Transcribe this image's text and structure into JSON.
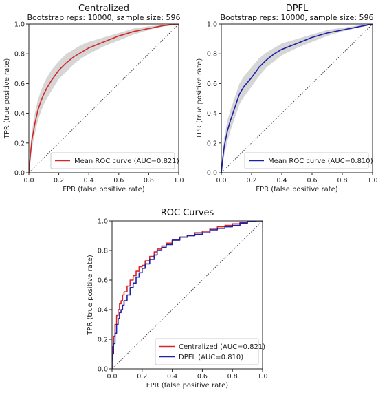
{
  "chart_data": [
    {
      "type": "line",
      "title": "Centralized",
      "subtitle": "Bootstrap reps: 10000, sample size: 596",
      "xlabel": "FPR (false positive rate)",
      "ylabel": "TPR (true positive rate)",
      "xlim": [
        0,
        1
      ],
      "ylim": [
        0,
        1
      ],
      "xticks": [
        "0.0",
        "0.2",
        "0.4",
        "0.6",
        "0.8",
        "1.0"
      ],
      "yticks": [
        "0.0",
        "0.2",
        "0.4",
        "0.6",
        "0.8",
        "1.0"
      ],
      "grid": false,
      "legend": "lower-right",
      "diagonal": true,
      "band_color": "#c8c8c8",
      "series": [
        {
          "name": "Mean ROC curve (AUC=0.821)",
          "color": "#d62728",
          "x": [
            0,
            0.01,
            0.02,
            0.04,
            0.06,
            0.08,
            0.1,
            0.12,
            0.15,
            0.2,
            0.25,
            0.3,
            0.35,
            0.4,
            0.5,
            0.6,
            0.7,
            0.8,
            0.9,
            1.0
          ],
          "y": [
            0,
            0.12,
            0.22,
            0.33,
            0.42,
            0.48,
            0.53,
            0.57,
            0.62,
            0.69,
            0.74,
            0.78,
            0.81,
            0.84,
            0.88,
            0.92,
            0.95,
            0.97,
            0.99,
            1.0
          ],
          "band_low": [
            0,
            0.07,
            0.16,
            0.26,
            0.35,
            0.41,
            0.46,
            0.5,
            0.55,
            0.63,
            0.68,
            0.73,
            0.77,
            0.8,
            0.85,
            0.89,
            0.93,
            0.96,
            0.985,
            1.0
          ],
          "band_high": [
            0,
            0.17,
            0.28,
            0.4,
            0.49,
            0.55,
            0.6,
            0.64,
            0.69,
            0.75,
            0.8,
            0.83,
            0.86,
            0.88,
            0.91,
            0.94,
            0.97,
            0.985,
            0.995,
            1.0
          ]
        }
      ]
    },
    {
      "type": "line",
      "title": "DPFL",
      "subtitle": "Bootstrap reps: 10000, sample size: 596",
      "xlabel": "FPR (false positive rate)",
      "ylabel": "TPR (true positive rate)",
      "xlim": [
        0,
        1
      ],
      "ylim": [
        0,
        1
      ],
      "xticks": [
        "0.0",
        "0.2",
        "0.4",
        "0.6",
        "0.8",
        "1.0"
      ],
      "yticks": [
        "0.0",
        "0.2",
        "0.4",
        "0.6",
        "0.8",
        "1.0"
      ],
      "grid": false,
      "legend": "lower-right",
      "diagonal": true,
      "band_color": "#c8c8c8",
      "series": [
        {
          "name": "Mean ROC curve (AUC=0.810)",
          "color": "#1f1fa8",
          "x": [
            0,
            0.01,
            0.02,
            0.04,
            0.06,
            0.08,
            0.1,
            0.12,
            0.15,
            0.2,
            0.25,
            0.3,
            0.35,
            0.4,
            0.5,
            0.6,
            0.7,
            0.8,
            0.9,
            1.0
          ],
          "y": [
            0,
            0.1,
            0.18,
            0.28,
            0.35,
            0.41,
            0.47,
            0.53,
            0.58,
            0.64,
            0.71,
            0.76,
            0.8,
            0.83,
            0.87,
            0.91,
            0.94,
            0.96,
            0.98,
            1.0
          ],
          "band_low": [
            0,
            0.06,
            0.12,
            0.21,
            0.28,
            0.34,
            0.4,
            0.46,
            0.51,
            0.58,
            0.65,
            0.71,
            0.75,
            0.79,
            0.84,
            0.88,
            0.92,
            0.95,
            0.975,
            1.0
          ],
          "band_high": [
            0,
            0.15,
            0.24,
            0.35,
            0.42,
            0.48,
            0.54,
            0.6,
            0.65,
            0.71,
            0.77,
            0.81,
            0.84,
            0.87,
            0.9,
            0.93,
            0.96,
            0.975,
            0.99,
            1.0
          ]
        }
      ]
    },
    {
      "type": "line",
      "title": "ROC Curves",
      "xlabel": "FPR (false positive rate)",
      "ylabel": "TPR (true positive rate)",
      "xlim": [
        0,
        1
      ],
      "ylim": [
        0,
        1
      ],
      "xticks": [
        "0.0",
        "0.2",
        "0.4",
        "0.6",
        "0.8",
        "1.0"
      ],
      "yticks": [
        "0.0",
        "0.2",
        "0.4",
        "0.6",
        "0.8",
        "1.0"
      ],
      "grid": false,
      "legend": "lower-right",
      "diagonal": true,
      "series": [
        {
          "name": "Centralized (AUC=0.821)",
          "color": "#d62728",
          "x": [
            0,
            0.005,
            0.01,
            0.02,
            0.03,
            0.04,
            0.05,
            0.06,
            0.07,
            0.08,
            0.1,
            0.12,
            0.14,
            0.16,
            0.18,
            0.2,
            0.22,
            0.25,
            0.28,
            0.3,
            0.33,
            0.36,
            0.4,
            0.45,
            0.5,
            0.55,
            0.6,
            0.65,
            0.7,
            0.75,
            0.8,
            0.85,
            0.9,
            0.95,
            1.0
          ],
          "y": [
            0,
            0.08,
            0.15,
            0.22,
            0.3,
            0.36,
            0.4,
            0.44,
            0.46,
            0.5,
            0.52,
            0.56,
            0.6,
            0.63,
            0.66,
            0.69,
            0.7,
            0.73,
            0.76,
            0.79,
            0.81,
            0.83,
            0.85,
            0.87,
            0.89,
            0.9,
            0.92,
            0.93,
            0.95,
            0.96,
            0.97,
            0.98,
            0.99,
            0.995,
            1.0
          ]
        },
        {
          "name": "DPFL (AUC=0.810)",
          "color": "#1f1fa8",
          "x": [
            0,
            0.005,
            0.01,
            0.02,
            0.03,
            0.04,
            0.05,
            0.06,
            0.07,
            0.08,
            0.1,
            0.12,
            0.14,
            0.16,
            0.18,
            0.2,
            0.22,
            0.25,
            0.28,
            0.3,
            0.33,
            0.36,
            0.4,
            0.45,
            0.5,
            0.55,
            0.6,
            0.65,
            0.7,
            0.75,
            0.8,
            0.85,
            0.9,
            0.95,
            1.0
          ],
          "y": [
            0,
            0.06,
            0.1,
            0.17,
            0.24,
            0.3,
            0.34,
            0.38,
            0.4,
            0.43,
            0.46,
            0.5,
            0.55,
            0.58,
            0.62,
            0.65,
            0.68,
            0.71,
            0.74,
            0.77,
            0.8,
            0.82,
            0.84,
            0.87,
            0.89,
            0.9,
            0.91,
            0.92,
            0.94,
            0.95,
            0.96,
            0.97,
            0.985,
            0.995,
            1.0
          ]
        }
      ]
    }
  ]
}
